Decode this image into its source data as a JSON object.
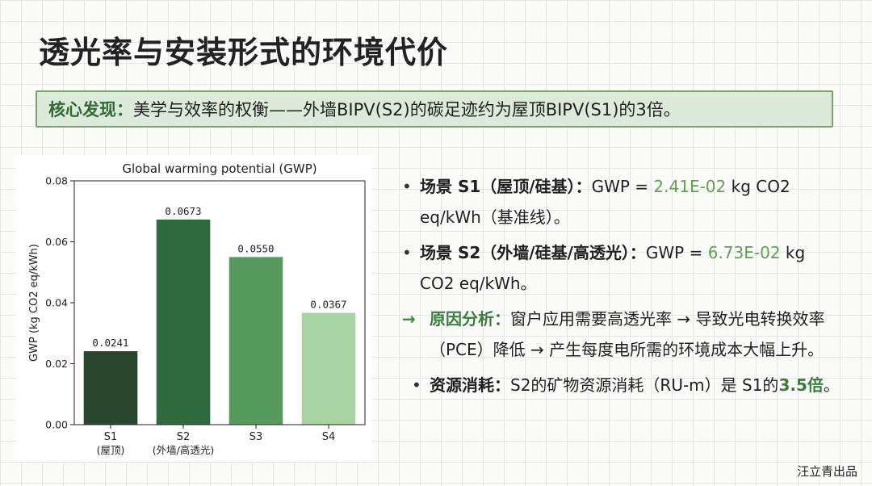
{
  "title": "透光率与安装形式的环境代价",
  "callout": {
    "label": "核心发现：",
    "text": "美学与效率的权衡——外墙BIPV(S2)的碳足迹约为屋顶BIPV(S1)的3倍。"
  },
  "chart_data": {
    "type": "bar",
    "title": "Global warming potential (GWP)",
    "xlabel": "",
    "ylabel": "GWP (kg CO2 eq/kWh)",
    "ylim": [
      0,
      0.08
    ],
    "yticks": [
      "0.00",
      "0.02",
      "0.04",
      "0.06",
      "0.08"
    ],
    "ytick_values": [
      0,
      0.02,
      0.04,
      0.06,
      0.08
    ],
    "categories": [
      "S1",
      "S2",
      "S3",
      "S4"
    ],
    "category_sublabels": [
      "(屋顶)",
      "(外墙/高透光)",
      "",
      ""
    ],
    "values": [
      0.0241,
      0.0673,
      0.055,
      0.0367
    ],
    "value_labels": [
      "0.0241",
      "0.0673",
      "0.0550",
      "0.0367"
    ],
    "colors": [
      "#27462c",
      "#2e6a3b",
      "#569a5d",
      "#a8d3a2"
    ],
    "grid": false,
    "legend": "none"
  },
  "bullets": {
    "s1": {
      "label": "场景 S1（屋顶/硅基）",
      "sep": "：",
      "prefix": "GWP = ",
      "value": "2.41E-02",
      "suffix": " kg CO2 eq/kWh（基准线）。"
    },
    "s2": {
      "label": "场景 S2（外墙/硅基/高透光）",
      "sep": "：",
      "prefix": "GWP = ",
      "value": "6.73E-02",
      "suffix": " kg CO2 eq/kWh。"
    },
    "reason": {
      "arrow": "→",
      "label": "原因分析：",
      "text": "窗户应用需要高透光率 → 导致光电转换效率（PCE）降低 → 产生每度电所需的环境成本大幅上升。"
    },
    "resource": {
      "label": "资源消耗：",
      "text_before": "S2的矿物资源消耗（RU-m）是 S1的",
      "highlight": "3.5倍",
      "text_after": "。"
    }
  },
  "credit": "汪立青出品"
}
